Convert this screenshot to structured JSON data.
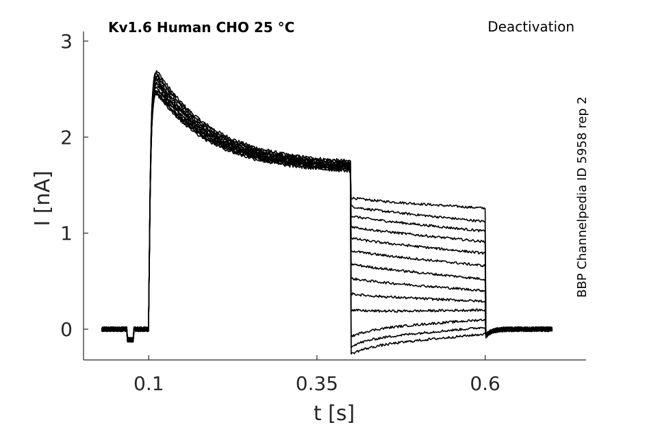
{
  "chart_data": {
    "type": "line",
    "title": "Kv1.6  Human  CHO  25 °C",
    "subtitle": "Deactivation",
    "side_label": "BBP Channelpedia ID 5958 rep 2",
    "xlabel": "t [s]",
    "ylabel": "I [nA]",
    "xlim": [
      0.003,
      0.75
    ],
    "ylim": [
      -0.32,
      3.1
    ],
    "xticks": [
      0.1,
      0.35,
      0.6
    ],
    "xtick_labels": [
      "0.1",
      "0.35",
      "0.6"
    ],
    "yticks": [
      0,
      1,
      2,
      3
    ],
    "ytick_labels": [
      "0",
      "1",
      "2",
      "3"
    ],
    "grid": false,
    "line_color": "#000000",
    "protocol": {
      "t_start": 0.03,
      "t_activation": 0.1,
      "t_step": 0.4,
      "t_step_end": 0.6,
      "t_end": 0.7
    },
    "series": [
      {
        "peak": 2.75,
        "end_of_activation": 1.75,
        "tail_start": 1.35,
        "tail_end": 1.26
      },
      {
        "peak": 2.72,
        "end_of_activation": 1.74,
        "tail_start": 1.26,
        "tail_end": 1.12
      },
      {
        "peak": 2.7,
        "end_of_activation": 1.73,
        "tail_start": 1.16,
        "tail_end": 1.02
      },
      {
        "peak": 2.67,
        "end_of_activation": 1.72,
        "tail_start": 1.05,
        "tail_end": 0.91
      },
      {
        "peak": 2.65,
        "end_of_activation": 1.71,
        "tail_start": 0.93,
        "tail_end": 0.79
      },
      {
        "peak": 2.63,
        "end_of_activation": 1.7,
        "tail_start": 0.8,
        "tail_end": 0.66
      },
      {
        "peak": 2.61,
        "end_of_activation": 1.7,
        "tail_start": 0.66,
        "tail_end": 0.52
      },
      {
        "peak": 2.59,
        "end_of_activation": 1.69,
        "tail_start": 0.51,
        "tail_end": 0.4
      },
      {
        "peak": 2.57,
        "end_of_activation": 1.68,
        "tail_start": 0.35,
        "tail_end": 0.29
      },
      {
        "peak": 2.55,
        "end_of_activation": 1.68,
        "tail_start": 0.18,
        "tail_end": 0.2
      },
      {
        "peak": 2.53,
        "end_of_activation": 1.67,
        "tail_start": 0.0,
        "tail_end": 0.1
      },
      {
        "peak": 2.52,
        "end_of_activation": 1.66,
        "tail_start": -0.1,
        "tail_end": 0.02
      },
      {
        "peak": 2.5,
        "end_of_activation": 1.65,
        "tail_start": -0.18,
        "tail_end": -0.05
      }
    ]
  }
}
